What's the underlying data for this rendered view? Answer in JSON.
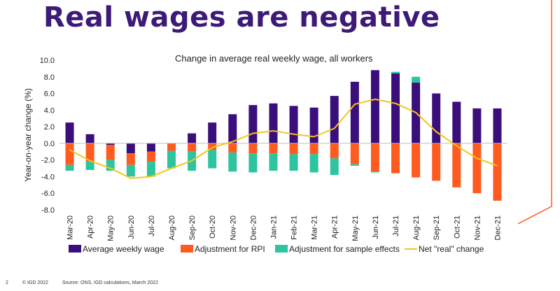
{
  "page": {
    "title": "Real wages are negative",
    "footer_page": "2",
    "footer_copyright": "© IGD 2022",
    "footer_source": "Source: ONS, IGD calculations, March 2022"
  },
  "colors": {
    "title": "#3d1a78",
    "wage": "#3a0f7c",
    "rpi": "#ff5a1f",
    "sample": "#2ec4a0",
    "net": "#f5c518",
    "accent": "#ff5a1f"
  },
  "chart_data": {
    "type": "bar",
    "stacked": true,
    "title": "Change in average real weekly wage, all workers",
    "ylabel": "Year-on-year change (%)",
    "xlabel": "",
    "ylim": [
      -8,
      10
    ],
    "yticks": [
      "10.0",
      "8.0",
      "6.0",
      "4.0",
      "2.0",
      "0.0",
      "-2.0",
      "-4.0",
      "-6.0",
      "-8.0"
    ],
    "categories": [
      "Mar-20",
      "Apr-20",
      "May-20",
      "Jun-20",
      "Jul-20",
      "Aug-20",
      "Sep-20",
      "Oct-20",
      "Nov-20",
      "Dec-20",
      "Jan-21",
      "Feb-21",
      "Mar-21",
      "Apr-21",
      "May-21",
      "Jun-21",
      "Jul-21",
      "Aug-21",
      "Sep-21",
      "Oct-21",
      "Nov-21",
      "Dec-21"
    ],
    "series": [
      {
        "name": "Average weekly wage",
        "color_key": "wage",
        "values": [
          2.5,
          1.1,
          -0.2,
          -1.2,
          -1.0,
          0.0,
          1.2,
          2.5,
          3.5,
          4.6,
          4.8,
          4.5,
          4.3,
          5.7,
          7.4,
          8.8,
          8.4,
          7.3,
          6.0,
          5.0,
          4.2,
          4.2
        ]
      },
      {
        "name": "Adjustment for RPI",
        "color_key": "rpi",
        "values": [
          -2.6,
          -2.2,
          -1.8,
          -1.4,
          -1.2,
          -0.9,
          -1.0,
          -0.8,
          -1.1,
          -1.2,
          -1.2,
          -1.3,
          -1.3,
          -1.8,
          -2.5,
          -3.4,
          -3.6,
          -4.1,
          -4.5,
          -5.3,
          -6.0,
          -6.9
        ]
      },
      {
        "name": "Adjustment for sample effects",
        "color_key": "sample",
        "values": [
          -0.7,
          -1.0,
          -1.3,
          -1.4,
          -1.8,
          -2.1,
          -2.3,
          -2.2,
          -2.3,
          -2.3,
          -2.1,
          -2.0,
          -2.2,
          -2.0,
          -0.2,
          -0.1,
          0.2,
          0.7,
          0.0,
          0.0,
          0.0,
          0.0
        ]
      },
      {
        "name": "Net \"real\" change",
        "color_key": "net",
        "kind": "line",
        "values": [
          -0.8,
          -2.1,
          -3.0,
          -4.2,
          -4.0,
          -3.0,
          -2.1,
          -0.5,
          0.2,
          1.2,
          1.5,
          1.1,
          0.8,
          1.8,
          4.7,
          5.3,
          4.8,
          3.7,
          1.4,
          -0.3,
          -1.8,
          -2.7
        ]
      }
    ],
    "grid": false,
    "legend_position": "bottom"
  }
}
